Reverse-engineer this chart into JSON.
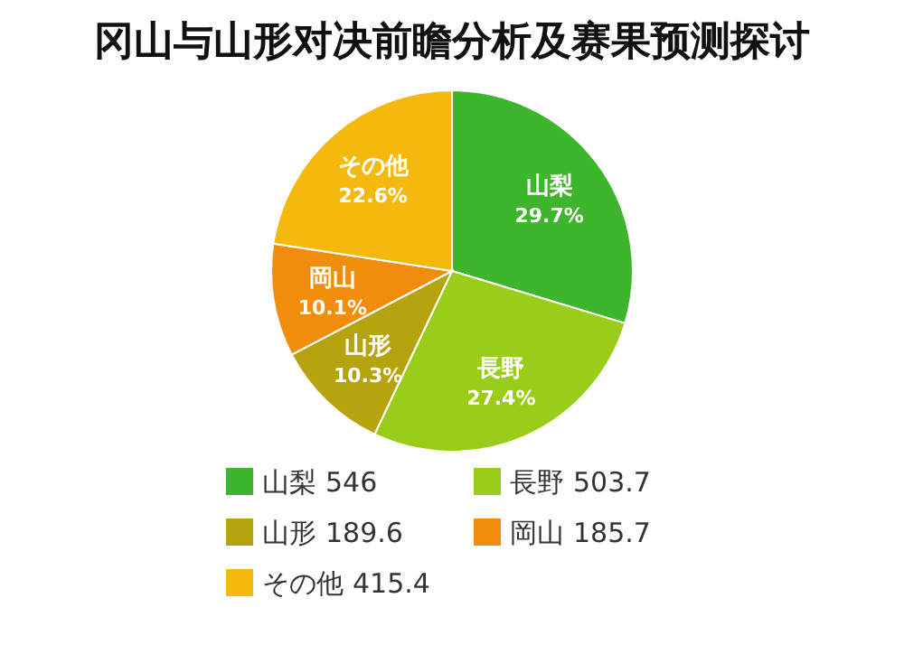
{
  "chart_data": {
    "type": "pie",
    "title": "冈山与山形对决前瞻分析及赛果预测探讨",
    "categories": [
      "山梨",
      "長野",
      "山形",
      "岡山",
      "その他"
    ],
    "values": [
      29.7,
      27.4,
      10.3,
      10.1,
      22.6
    ],
    "value_labels": [
      "29.7%",
      "27.4%",
      "10.3%",
      "10.1%",
      "22.6%"
    ],
    "colors": [
      "#3db52c",
      "#9acd1a",
      "#b5a410",
      "#f28c0c",
      "#f5b80c"
    ],
    "annotations": [
      "546",
      "503.7",
      "189.6",
      "185.7",
      "415.4"
    ],
    "legend": "bottom"
  }
}
